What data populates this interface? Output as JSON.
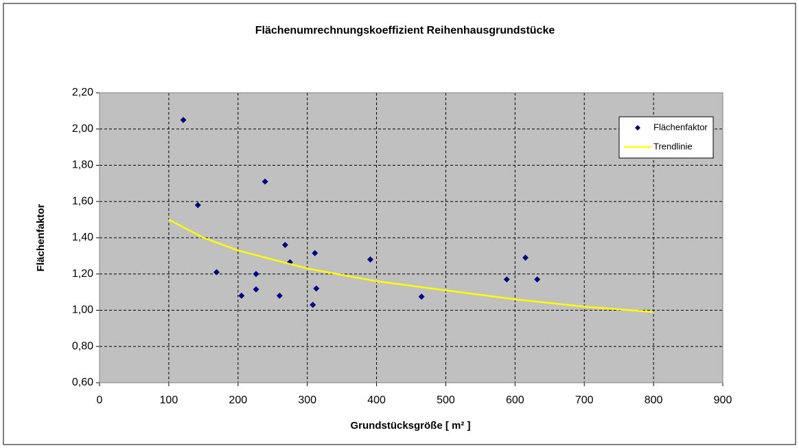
{
  "chart_data": {
    "type": "scatter",
    "title": "Flächenumrechnungskoeffizient Reihenhausgrundstücke",
    "x_label": "Grundstücksgröße [ m² ]",
    "y_label": "Flächenfaktor",
    "series": [
      {
        "name": "Flächenfaktor",
        "type": "scatter",
        "color": "#000080",
        "x": [
          121,
          142,
          169,
          205,
          226,
          226,
          239,
          260,
          268,
          275,
          308,
          311,
          313,
          391,
          465,
          588,
          615,
          632
        ],
        "values": [
          2.05,
          1.58,
          1.21,
          1.08,
          1.2,
          1.115,
          1.71,
          1.08,
          1.36,
          1.265,
          1.03,
          1.315,
          1.12,
          1.28,
          1.075,
          1.17,
          1.29,
          1.17
        ]
      },
      {
        "name": "Trendlinie",
        "type": "line",
        "color": "#ffff00",
        "x": [
          100,
          150,
          200,
          300,
          400,
          500,
          600,
          700,
          800
        ],
        "values": [
          1.5,
          1.4,
          1.33,
          1.23,
          1.16,
          1.11,
          1.06,
          1.02,
          0.99
        ]
      }
    ],
    "xlim": [
      0,
      900
    ],
    "xticks": [
      0,
      100,
      200,
      300,
      400,
      500,
      600,
      700,
      800,
      900
    ],
    "ylim": [
      0.6,
      2.2
    ],
    "yticks": [
      {
        "value": 0.6,
        "label": "0,60"
      },
      {
        "value": 0.8,
        "label": "0,80"
      },
      {
        "value": 1.0,
        "label": "1,00"
      },
      {
        "value": 1.2,
        "label": "1,20"
      },
      {
        "value": 1.4,
        "label": "1,40"
      },
      {
        "value": 1.6,
        "label": "1,60"
      },
      {
        "value": 1.8,
        "label": "1,80"
      },
      {
        "value": 2.0,
        "label": "2,00"
      },
      {
        "value": 2.2,
        "label": "2,20"
      }
    ],
    "grid": true,
    "legend": "right",
    "plot_background": "#c0c0c0"
  }
}
